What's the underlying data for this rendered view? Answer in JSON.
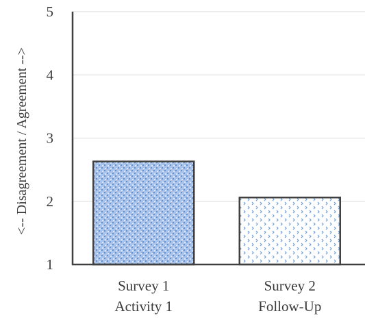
{
  "chart_data": {
    "type": "bar",
    "categories": [
      [
        "Survey 1",
        "Activity 1"
      ],
      [
        "Survey 2",
        "Follow-Up"
      ]
    ],
    "values": [
      2.63,
      2.06
    ],
    "ylabel": "<-- Disagreement / Agreement -->",
    "xlabel": "",
    "ylim": [
      1,
      5
    ],
    "yticks": [
      1,
      2,
      3,
      4,
      5
    ],
    "grid": true,
    "legend": "none",
    "colors": {
      "bar_1_fill": "#a9c3ea",
      "bar_1_dots": "#ffffff",
      "bar_2_fill": "#ffffff",
      "bar_2_marks": "#6e9ed8",
      "bar_border": "#404040",
      "axis": "#404040",
      "grid": "#d9d9d9"
    }
  }
}
